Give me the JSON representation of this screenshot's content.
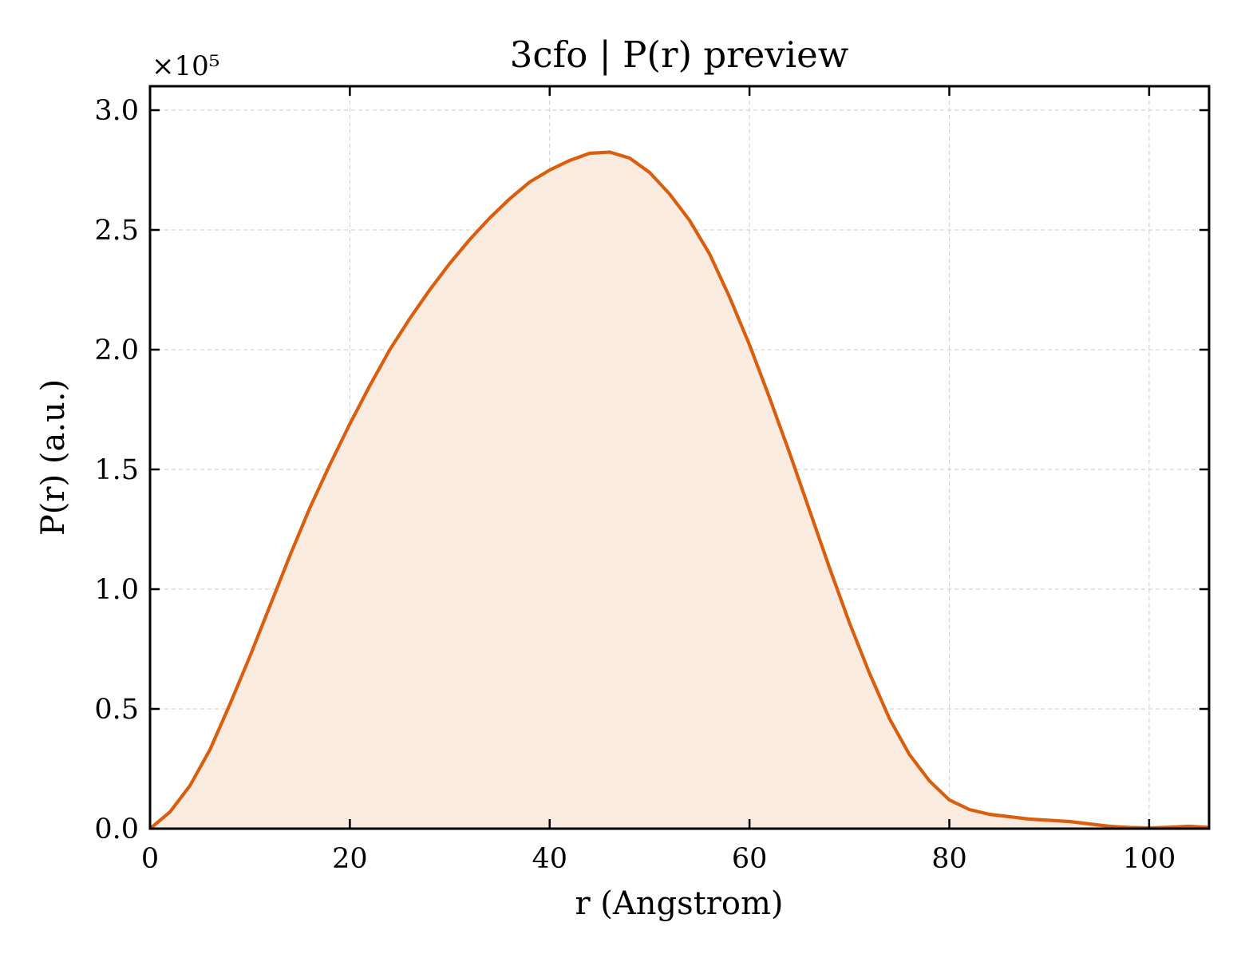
{
  "chart_data": {
    "type": "area",
    "title": "3cfo | P(r) preview",
    "xlabel": "r (Angstrom)",
    "ylabel": "P(r) (a.u.)",
    "y_multiplier": "×10⁵",
    "xlim": [
      0,
      106
    ],
    "ylim": [
      0,
      3.1
    ],
    "x_ticks": [
      0,
      20,
      40,
      60,
      80,
      100
    ],
    "x_tick_labels": [
      "0",
      "20",
      "40",
      "60",
      "80",
      "100"
    ],
    "y_ticks": [
      0,
      0.5,
      1.0,
      1.5,
      2.0,
      2.5,
      3.0
    ],
    "y_tick_labels": [
      "0.0",
      "0.5",
      "1.0",
      "1.5",
      "2.0",
      "2.5",
      "3.0"
    ],
    "grid": true,
    "line_color": "#d95f0e",
    "fill_color": "#f9ebe0",
    "series": [
      {
        "x": [
          0,
          2,
          4,
          6,
          8,
          10,
          12,
          14,
          16,
          18,
          20,
          22,
          24,
          26,
          28,
          30,
          32,
          34,
          36,
          38,
          40,
          42,
          44,
          46,
          48,
          50,
          52,
          54,
          56,
          58,
          60,
          62,
          64,
          66,
          68,
          70,
          72,
          74,
          76,
          78,
          80,
          82,
          84,
          86,
          88,
          90,
          92,
          94,
          96,
          98,
          100,
          102,
          104,
          106
        ],
        "y": [
          0.0,
          0.07,
          0.18,
          0.33,
          0.52,
          0.72,
          0.93,
          1.14,
          1.34,
          1.52,
          1.69,
          1.85,
          2.0,
          2.13,
          2.25,
          2.36,
          2.46,
          2.55,
          2.63,
          2.7,
          2.75,
          2.79,
          2.82,
          2.825,
          2.8,
          2.74,
          2.65,
          2.54,
          2.4,
          2.22,
          2.02,
          1.8,
          1.57,
          1.33,
          1.09,
          0.86,
          0.65,
          0.46,
          0.31,
          0.2,
          0.12,
          0.08,
          0.06,
          0.05,
          0.04,
          0.035,
          0.03,
          0.02,
          0.01,
          0.005,
          0.003,
          0.006,
          0.01,
          0.005
        ]
      }
    ]
  }
}
